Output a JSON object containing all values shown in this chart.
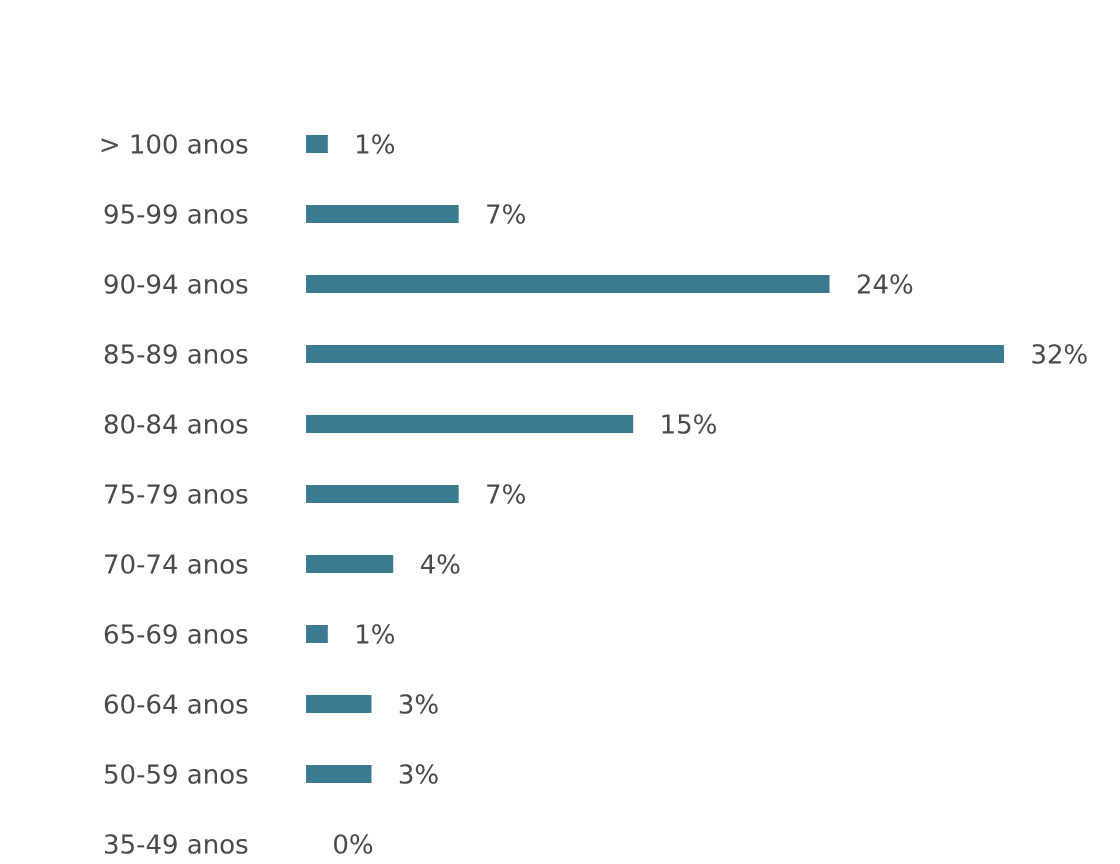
{
  "chart_data": {
    "type": "bar",
    "orientation": "horizontal",
    "categories": [
      "> 100 anos",
      "95-99 anos",
      "90-94 anos",
      "85-89 anos",
      "80-84 anos",
      "75-79 anos",
      "70-74 anos",
      "65-69 anos",
      "60-64 anos",
      "50-59 anos",
      "35-49 anos"
    ],
    "values": [
      1,
      7,
      24,
      32,
      15,
      7,
      4,
      1,
      3,
      3,
      0
    ],
    "value_labels": [
      "1%",
      "7%",
      "24%",
      "32%",
      "15%",
      "7%",
      "4%",
      "1%",
      "3%",
      "3%",
      "0%"
    ],
    "color": "#3b7a91",
    "tick_labels": "y"
  }
}
